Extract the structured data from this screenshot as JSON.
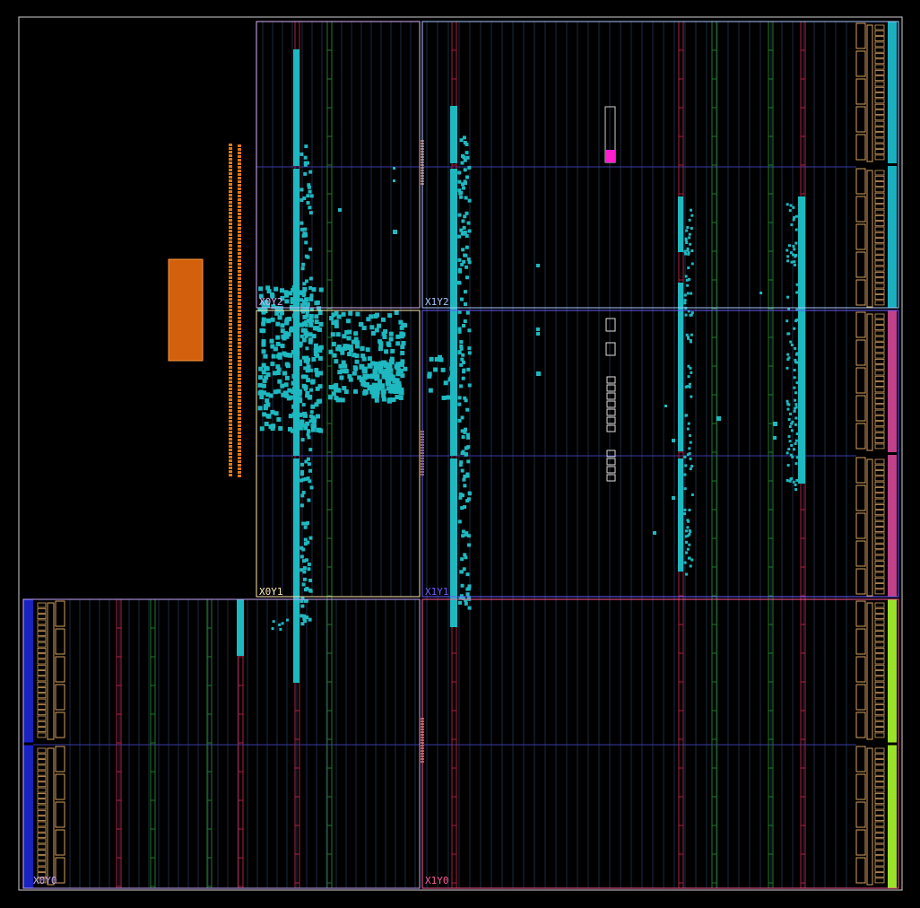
{
  "view": {
    "background": "#000000",
    "frame_color": "#cfcfcf"
  },
  "regions": [
    {
      "label": "X0Y2",
      "color": "#d8b4f8"
    },
    {
      "label": "X1Y2",
      "color": "#a7c7ff"
    },
    {
      "label": "X0Y1",
      "color": "#ffe9b0"
    },
    {
      "label": "X1Y1",
      "color": "#6a5cff"
    },
    {
      "label": "X0Y0",
      "color": "#c8a8ff"
    },
    {
      "label": "X1Y0",
      "color": "#ff5a9a"
    }
  ],
  "colors": {
    "cells": "#1eb8c0",
    "io_pins": "#e07818",
    "placed_block": "#d2600c",
    "selected_cell": "#ff1ecc",
    "clock_column": "#b02040",
    "dsp_column": "#1f7a2a",
    "io_bank_outline": "#d4a060",
    "column_guides": "#1b2a44",
    "clock_region_row": "#3a3aa8"
  },
  "side_bars": [
    {
      "region": "X1Y2",
      "color": "#1ab0c0"
    },
    {
      "region": "X1Y1",
      "color": "#c0408a"
    },
    {
      "region": "X1Y0",
      "color": "#9ae22a"
    },
    {
      "region": "X0Y0",
      "color": "#1a22c0"
    }
  ]
}
